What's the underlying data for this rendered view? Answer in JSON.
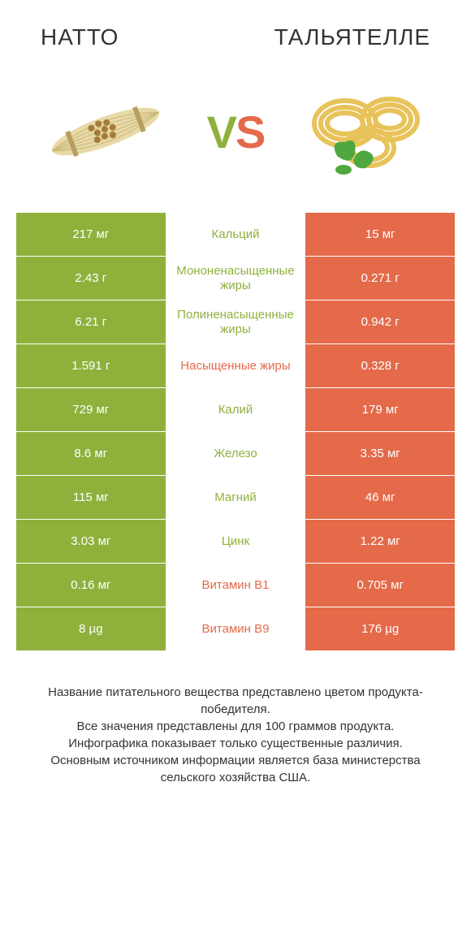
{
  "colors": {
    "green": "#8fb13c",
    "orange": "#e46a4a",
    "neutral": "#a8a8a8",
    "text_mid_green": "#8fb13c",
    "text_mid_orange": "#e46a4a"
  },
  "header": {
    "left_title": "Натто",
    "right_title": "Тальятелле",
    "vs_v": "V",
    "vs_s": "S"
  },
  "rows": [
    {
      "label": "Кальций",
      "left": "217 мг",
      "right": "15 мг",
      "winner": "left"
    },
    {
      "label": "Мононенасыщенные жиры",
      "left": "2.43 г",
      "right": "0.271 г",
      "winner": "left"
    },
    {
      "label": "Полиненасыщенные жиры",
      "left": "6.21 г",
      "right": "0.942 г",
      "winner": "left"
    },
    {
      "label": "Насыщенные жиры",
      "left": "1.591 г",
      "right": "0.328 г",
      "winner": "right"
    },
    {
      "label": "Калий",
      "left": "729 мг",
      "right": "179 мг",
      "winner": "left"
    },
    {
      "label": "Железо",
      "left": "8.6 мг",
      "right": "3.35 мг",
      "winner": "left"
    },
    {
      "label": "Магний",
      "left": "115 мг",
      "right": "46 мг",
      "winner": "left"
    },
    {
      "label": "Цинк",
      "left": "3.03 мг",
      "right": "1.22 мг",
      "winner": "left"
    },
    {
      "label": "Витамин B1",
      "left": "0.16 мг",
      "right": "0.705 мг",
      "winner": "right"
    },
    {
      "label": "Витамин B9",
      "left": "8 µg",
      "right": "176 µg",
      "winner": "right"
    }
  ],
  "footnote": {
    "line1": "Название питательного вещества представлено цветом продукта-победителя.",
    "line2": "Все значения представлены для 100 граммов продукта.",
    "line3": "Инфографика показывает только существенные различия.",
    "line4": "Основным источником информации является база министерства сельского хозяйства США."
  }
}
